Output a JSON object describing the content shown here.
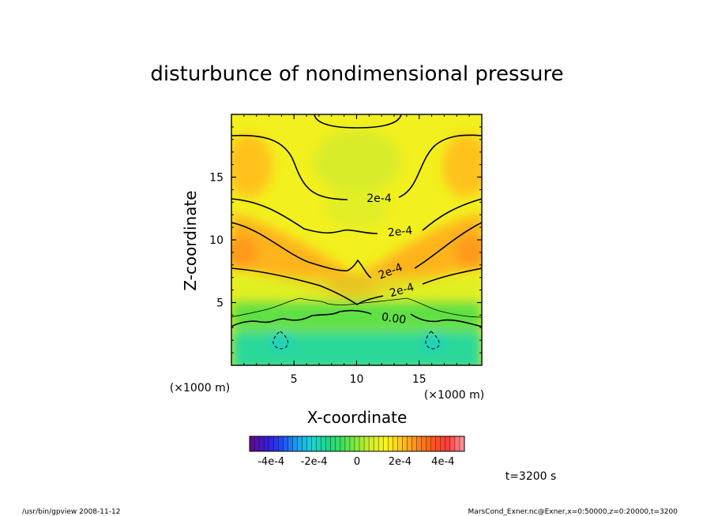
{
  "chart_data": {
    "type": "heatmap",
    "title": "disturbunce of nondimensional pressure",
    "xlabel": "X-coordinate",
    "ylabel": "Z-coordinate",
    "x_unit": "(×1000 m)",
    "y_unit": "(×1000 m)",
    "xlim": [
      0,
      20
    ],
    "ylim": [
      0,
      20
    ],
    "x_ticks": [
      5,
      10,
      15
    ],
    "y_ticks": [
      5,
      10,
      15
    ],
    "x_tick_labels": [
      "5",
      "10",
      "15"
    ],
    "y_tick_labels": [
      "5",
      "10",
      "15"
    ],
    "contour_labels": [
      "2e-4",
      "2e-4",
      "2e-4",
      "2e-4",
      "0.00"
    ],
    "colorbar": {
      "range": [
        -0.0005,
        0.0005
      ],
      "tick_values": [
        -0.0004,
        -0.0002,
        0,
        0.0002,
        0.0004
      ],
      "tick_labels": [
        "-4e-4",
        "-2e-4",
        "0",
        "2e-4",
        "4e-4"
      ],
      "colors": [
        "#5b0f8f",
        "#3a1ad8",
        "#1e4cf0",
        "#1aa0f0",
        "#19d6d6",
        "#1ad88a",
        "#3ee05a",
        "#8ce83a",
        "#d6ee28",
        "#fff21e",
        "#ffc21e",
        "#ff8a1e",
        "#ff5a1e",
        "#ff3a3a",
        "#ff8c8c"
      ]
    },
    "grid": false,
    "time": "t=3200 s"
  },
  "footer": {
    "left": "/usr/bin/gpview   2008-11-12",
    "right": "MarsCond_Exner.nc@Exner,x=0:50000,z=0:20000,t=3200"
  }
}
